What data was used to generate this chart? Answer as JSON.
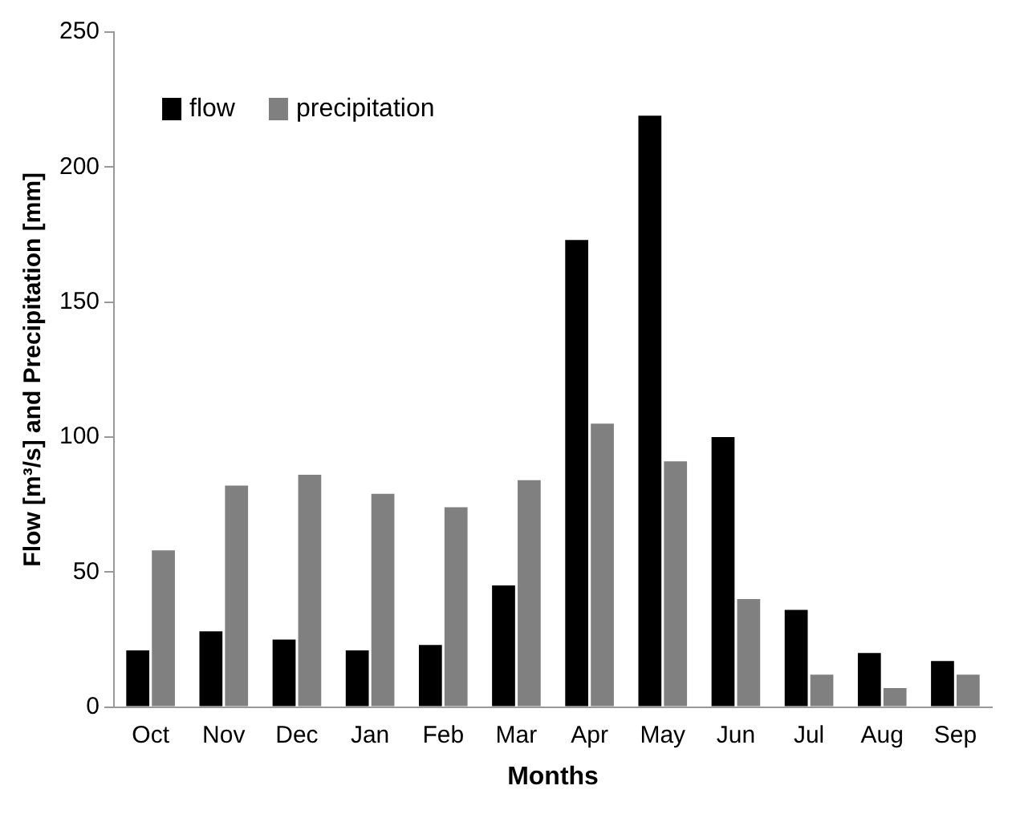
{
  "chart_data": {
    "type": "bar",
    "xlabel": "Months",
    "ylabel": "Flow [m³/s] and Precipitation [mm]",
    "categories": [
      "Oct",
      "Nov",
      "Dec",
      "Jan",
      "Feb",
      "Mar",
      "Apr",
      "May",
      "Jun",
      "Jul",
      "Aug",
      "Sep"
    ],
    "series": [
      {
        "name": "flow",
        "color": "#000000",
        "values": [
          21,
          28,
          25,
          21,
          23,
          45,
          173,
          219,
          100,
          36,
          20,
          17
        ]
      },
      {
        "name": "precipitation",
        "color": "#808080",
        "values": [
          58,
          82,
          86,
          79,
          74,
          84,
          105,
          91,
          40,
          12,
          7,
          12
        ]
      }
    ],
    "ylim": [
      0,
      250
    ],
    "yticks": [
      0,
      50,
      100,
      150,
      200,
      250
    ],
    "grid": false,
    "legend": "top left"
  }
}
